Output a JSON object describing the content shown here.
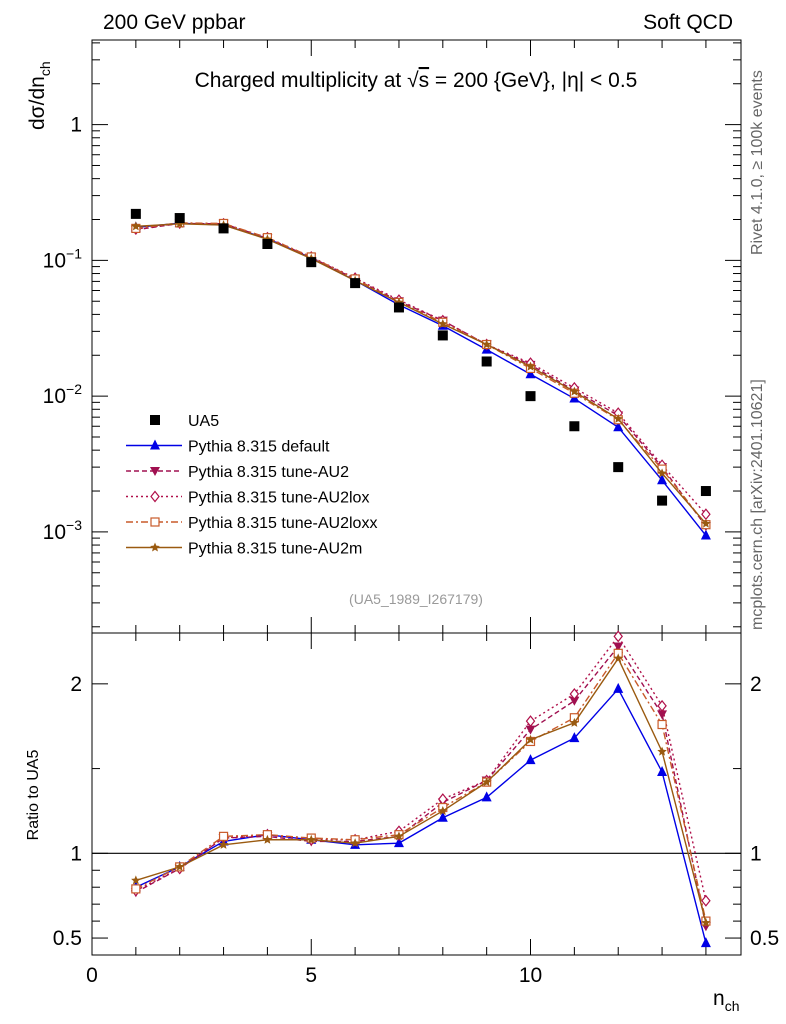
{
  "header": {
    "left": "200 GeV ppbar",
    "right": "Soft QCD"
  },
  "side": {
    "rivet": "Rivet 4.1.0, ≥ 100k events",
    "mcplots": "mcplots.cern.ch [arXiv:2401.10621]"
  },
  "colors": {
    "data": "#000000",
    "default": "#0000e6",
    "au2": "#a01050",
    "au2lox": "#b0104a",
    "au2loxx": "#c85a2a",
    "au2m": "#9a5a10"
  },
  "chart_data": {
    "type": "line",
    "title": "Charged multiplicity at √s = 200 {GeV}, |η| < 0.5",
    "title_parts": {
      "pre": "Charged multiplicity at ",
      "sqrt": "√",
      "s": "s",
      "post": " = 200 {GeV}, |η| < 0.5"
    },
    "ref_label": "(UA5_1989_I267179)",
    "xlabel": "n_ch",
    "xlabel_main": "n",
    "xlabel_sub": "ch",
    "ylabel": "dσ/dn_ch",
    "ylabel_main": "dσ/dn",
    "ylabel_sub": "ch",
    "ratio_ylabel": "Ratio to UA5",
    "xlim": [
      0,
      14.8
    ],
    "ylim": [
      0.00018,
      4.2
    ],
    "ratio_ylim": [
      0.4,
      2.3
    ],
    "x_ticks": [
      0,
      5,
      10
    ],
    "x_tick_labels": [
      "0",
      "5",
      "10"
    ],
    "y_ticks": [
      0.001,
      0.01,
      0.1,
      1
    ],
    "y_tick_labels": [
      {
        "base": "10",
        "exp": "−3"
      },
      {
        "base": "10",
        "exp": "−2"
      },
      {
        "base": "10",
        "exp": "−1"
      },
      {
        "base": "1",
        "exp": ""
      }
    ],
    "ratio_ticks": [
      0.5,
      1,
      2
    ],
    "ratio_tick_labels": [
      "0.5",
      "1",
      "2"
    ],
    "x": [
      1,
      2,
      3,
      4,
      5,
      6,
      7,
      8,
      9,
      10,
      11,
      12,
      13,
      14
    ],
    "data": {
      "name": "UA5",
      "values": [
        0.22,
        0.205,
        0.172,
        0.132,
        0.097,
        0.068,
        0.045,
        0.028,
        0.018,
        0.01,
        0.006,
        0.003,
        0.0017,
        0.002
      ]
    },
    "series": [
      {
        "name": "Pythia 8.315 default",
        "key": "default",
        "marker": "triangle-up",
        "dash": "",
        "values": [
          0.175,
          0.188,
          0.182,
          0.145,
          0.104,
          0.071,
          0.047,
          0.033,
          0.022,
          0.0145,
          0.0096,
          0.0059,
          0.0024,
          0.00094
        ],
        "ratio": [
          0.8,
          0.92,
          1.07,
          1.11,
          1.08,
          1.05,
          1.06,
          1.21,
          1.33,
          1.55,
          1.68,
          1.97,
          1.48,
          0.47
        ]
      },
      {
        "name": "Pythia 8.315 tune-AU2",
        "key": "au2",
        "marker": "triangle-down",
        "dash": "5,3",
        "values": [
          0.168,
          0.187,
          0.186,
          0.146,
          0.105,
          0.073,
          0.05,
          0.036,
          0.024,
          0.017,
          0.011,
          0.0072,
          0.003,
          0.0011
        ],
        "ratio": [
          0.77,
          0.91,
          1.09,
          1.1,
          1.07,
          1.07,
          1.1,
          1.3,
          1.43,
          1.73,
          1.9,
          2.22,
          1.82,
          0.57
        ]
      },
      {
        "name": "Pythia 8.315 tune-AU2lox",
        "key": "au2lox",
        "marker": "diamond-open",
        "dash": "2,3",
        "values": [
          0.17,
          0.188,
          0.186,
          0.147,
          0.106,
          0.074,
          0.051,
          0.036,
          0.024,
          0.0175,
          0.0115,
          0.0075,
          0.0031,
          0.00135
        ],
        "ratio": [
          0.78,
          0.91,
          1.09,
          1.11,
          1.08,
          1.08,
          1.13,
          1.32,
          1.43,
          1.78,
          1.94,
          2.28,
          1.87,
          0.72
        ]
      },
      {
        "name": "Pythia 8.315 tune-AU2loxx",
        "key": "au2loxx",
        "marker": "square-open",
        "dash": "7,3,2,3",
        "values": [
          0.172,
          0.189,
          0.187,
          0.147,
          0.106,
          0.073,
          0.049,
          0.035,
          0.024,
          0.016,
          0.0105,
          0.0067,
          0.0029,
          0.00113
        ],
        "ratio": [
          0.79,
          0.92,
          1.1,
          1.11,
          1.09,
          1.08,
          1.11,
          1.27,
          1.42,
          1.66,
          1.8,
          2.18,
          1.76,
          0.6
        ]
      },
      {
        "name": "Pythia 8.315 tune-AU2m",
        "key": "au2m",
        "marker": "star",
        "dash": "",
        "values": [
          0.178,
          0.186,
          0.182,
          0.143,
          0.103,
          0.071,
          0.049,
          0.034,
          0.024,
          0.0165,
          0.0108,
          0.0068,
          0.0027,
          0.00115
        ],
        "ratio": [
          0.84,
          0.92,
          1.05,
          1.08,
          1.08,
          1.06,
          1.1,
          1.25,
          1.42,
          1.67,
          1.77,
          2.15,
          1.6,
          0.59
        ]
      }
    ]
  }
}
